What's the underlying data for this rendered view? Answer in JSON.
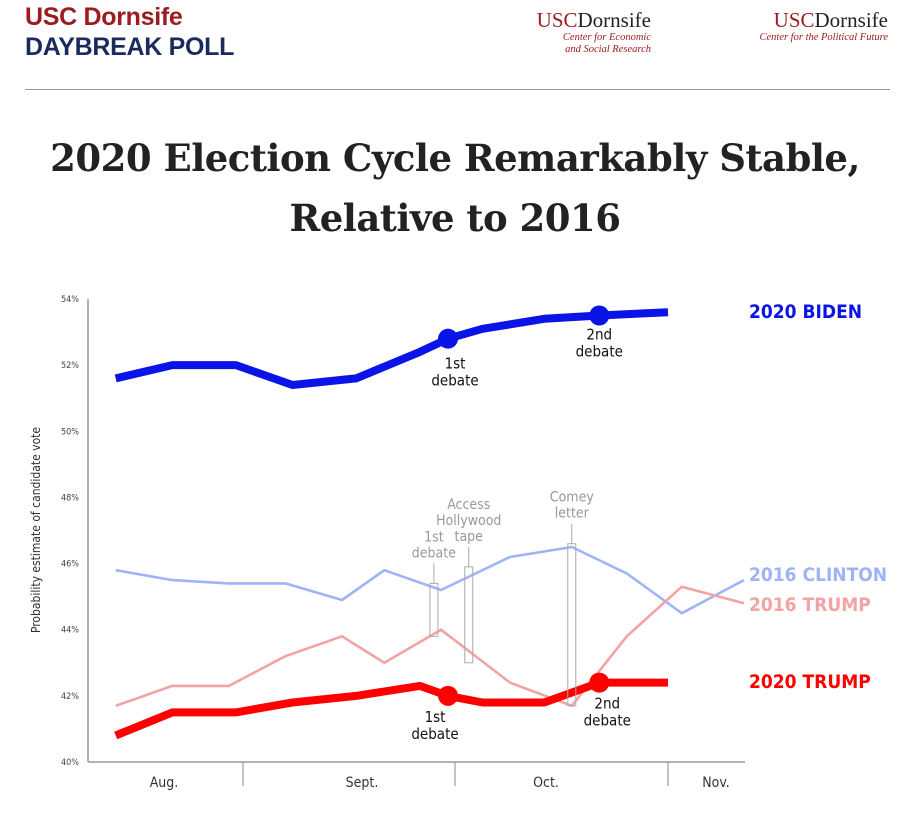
{
  "header": {
    "brand_line1": "USC Dornsife",
    "brand_line2": "DAYBREAK POLL",
    "logo1": {
      "prefix": "USC",
      "name": "Dornsife",
      "sub1": "Center for Economic",
      "sub2": "and Social Research"
    },
    "logo2": {
      "prefix": "USC",
      "name": "Dornsife",
      "sub1": "Center for the Political Future"
    }
  },
  "chart_data": {
    "type": "line",
    "title_line1": "2020 Election Cycle Remarkably Stable,",
    "title_line2": "Relative to 2016",
    "ylabel": "Probability estimate of candidate vote",
    "xlabel": "",
    "ylim": [
      40,
      54
    ],
    "yticks": [
      "40%",
      "42%",
      "44%",
      "46%",
      "48%",
      "50%",
      "52%",
      "54%"
    ],
    "ytick_values": [
      40,
      42,
      44,
      46,
      48,
      50,
      52,
      54
    ],
    "xticks": [
      "Aug.",
      "Sept.",
      "Oct.",
      "Nov."
    ],
    "grid": false,
    "legend_placement": "right, inline labels",
    "series": [
      {
        "name": "2020 BIDEN",
        "color": "#0a14e6",
        "weight": "thick",
        "x": [
          "08-14",
          "08-22",
          "08-31",
          "09-08",
          "09-17",
          "09-26",
          "09-30",
          "10-05",
          "10-14",
          "10-22",
          "11-01"
        ],
        "y": [
          51.6,
          52.0,
          52.0,
          51.4,
          51.6,
          52.4,
          52.8,
          53.1,
          53.4,
          53.5,
          53.6
        ]
      },
      {
        "name": "2016 CLINTON",
        "color": "#9fb4f5",
        "weight": "thin",
        "x": [
          "08-14",
          "08-22",
          "08-30",
          "09-07",
          "09-15",
          "09-21",
          "09-29",
          "10-09",
          "10-18",
          "10-26",
          "11-03",
          "11-12"
        ],
        "y": [
          45.8,
          45.5,
          45.4,
          45.4,
          44.9,
          45.8,
          45.2,
          46.2,
          46.5,
          45.7,
          44.5,
          45.5
        ]
      },
      {
        "name": "2016 TRUMP",
        "color": "#f2a3a3",
        "weight": "thin",
        "x": [
          "08-14",
          "08-22",
          "08-30",
          "09-07",
          "09-15",
          "09-21",
          "09-29",
          "10-09",
          "10-18",
          "10-26",
          "11-03",
          "11-12"
        ],
        "y": [
          41.7,
          42.3,
          42.3,
          43.2,
          43.8,
          43.0,
          44.0,
          42.4,
          41.7,
          43.8,
          45.3,
          44.8
        ]
      },
      {
        "name": "2020 TRUMP",
        "color": "#ff0000",
        "weight": "thick",
        "x": [
          "08-14",
          "08-22",
          "08-31",
          "09-08",
          "09-17",
          "09-26",
          "09-30",
          "10-05",
          "10-14",
          "10-22",
          "11-01"
        ],
        "y": [
          40.8,
          41.5,
          41.5,
          41.8,
          42.0,
          42.3,
          42.0,
          41.8,
          41.8,
          42.4,
          42.4
        ]
      }
    ],
    "markers_2020": [
      {
        "series": "2020 BIDEN",
        "x": "09-30",
        "y": 52.8,
        "label1": "1st",
        "label2": "debate"
      },
      {
        "series": "2020 BIDEN",
        "x": "10-22",
        "y": 53.5,
        "label1": "2nd",
        "label2": "debate"
      },
      {
        "series": "2020 TRUMP",
        "x": "09-30",
        "y": 42.0,
        "label1": "1st",
        "label2": "debate"
      },
      {
        "series": "2020 TRUMP",
        "x": "10-22",
        "y": 42.4,
        "label1": "2nd",
        "label2": "debate"
      }
    ],
    "events_2016": [
      {
        "x": "09-28",
        "y_range": [
          43.8,
          45.4
        ],
        "lines": [
          "1st",
          "debate"
        ]
      },
      {
        "x": "10-03",
        "y_range": [
          43.0,
          45.9
        ],
        "lines": [
          "Access",
          "Hollywood",
          "tape"
        ]
      },
      {
        "x": "10-18",
        "y_range": [
          41.7,
          46.6
        ],
        "lines": [
          "Comey",
          "letter"
        ]
      }
    ]
  }
}
